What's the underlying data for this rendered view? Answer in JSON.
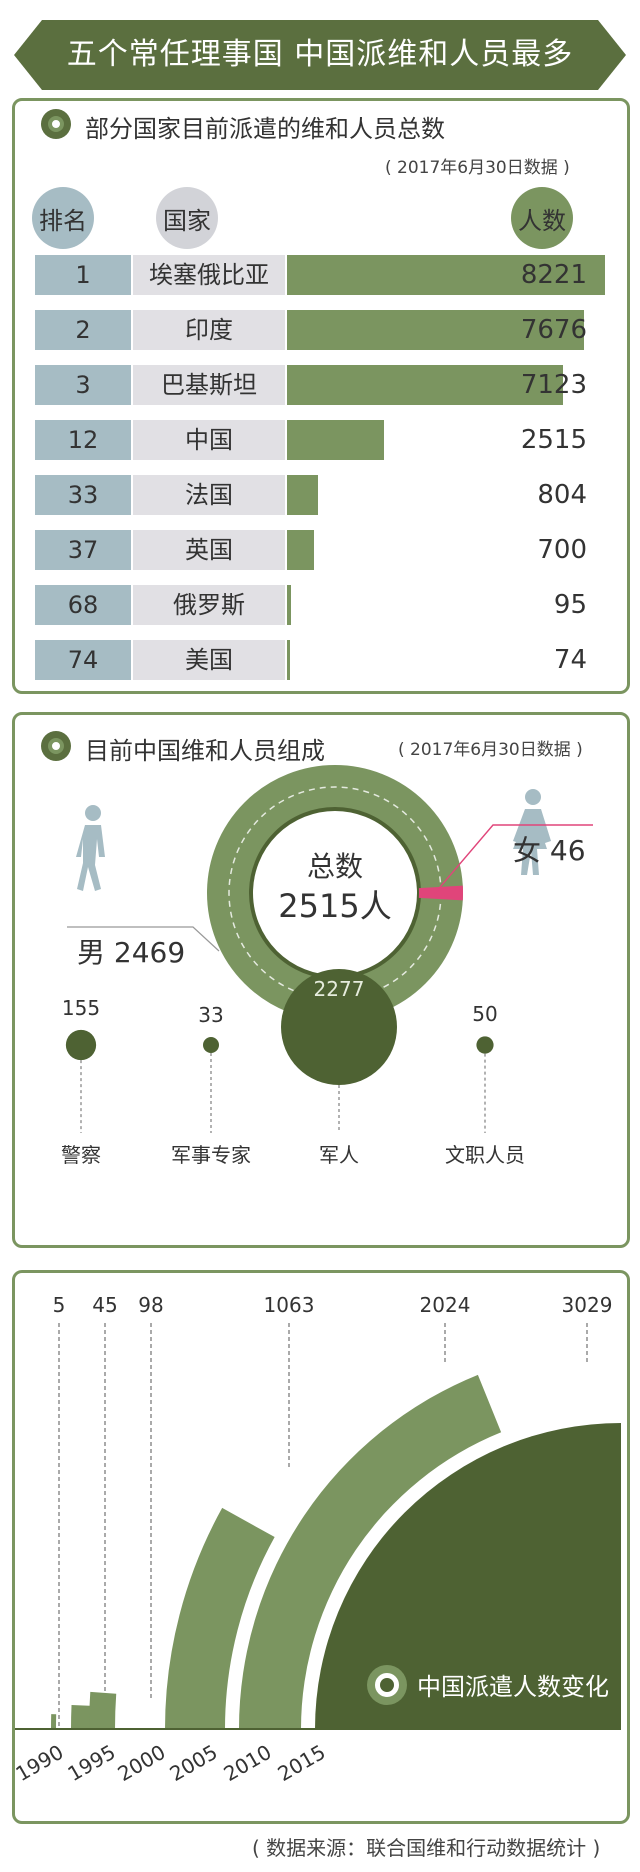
{
  "banner_title": "五个常任理事国  中国派维和人员最多",
  "section1": {
    "title": "部分国家目前派遣的维和人员总数",
    "note": "( 2017年6月30日数据 )",
    "headers": {
      "rank": "排名",
      "country": "国家",
      "count": "人数"
    }
  },
  "section2": {
    "title": "目前中国维和人员组成",
    "note": "( 2017年6月30日数据 )",
    "total_label": "总数",
    "total_value": "2515人",
    "male_label": "男 2469",
    "female_label": "女 46",
    "roles": [
      {
        "name": "警察",
        "value": "155"
      },
      {
        "name": "军事专家",
        "value": "33"
      },
      {
        "name": "军人",
        "value": "2277"
      },
      {
        "name": "文职人员",
        "value": "50"
      }
    ]
  },
  "section3": {
    "title": "中国派遣人数变化",
    "years": [
      "1990",
      "1995",
      "2000",
      "2005",
      "2010",
      "2015"
    ],
    "values": [
      "5",
      "45",
      "98",
      "1063",
      "2024",
      "3029"
    ]
  },
  "source": "( 数据来源：联合国维和行动数据统计 )",
  "colors": {
    "dark_green": "#4e6233",
    "mid_green": "#7b9560",
    "rank_blue": "#a6bcc4",
    "country_gray": "#e1e0e4",
    "female_pink": "#e0457a"
  },
  "chart_data": [
    {
      "type": "bar",
      "orientation": "horizontal",
      "categories": [
        "埃塞俄比亚",
        "印度",
        "巴基斯坦",
        "中国",
        "法国",
        "英国",
        "俄罗斯",
        "美国"
      ],
      "ranks": [
        "1",
        "2",
        "3",
        "12",
        "33",
        "37",
        "68",
        "74"
      ],
      "values": [
        8221,
        7676,
        7123,
        2515,
        804,
        700,
        95,
        74
      ]
    },
    {
      "type": "pie",
      "categories": [
        "男",
        "女"
      ],
      "values": [
        2469,
        46
      ]
    },
    {
      "type": "scatter",
      "categories": [
        "警察",
        "军事专家",
        "军人",
        "文职人员"
      ],
      "values": [
        155,
        33,
        2277,
        50
      ]
    },
    {
      "type": "bar",
      "categories": [
        "1990",
        "1995",
        "2000",
        "2005",
        "2010",
        "2015"
      ],
      "values": [
        5,
        45,
        98,
        1063,
        2024,
        3029
      ]
    }
  ]
}
